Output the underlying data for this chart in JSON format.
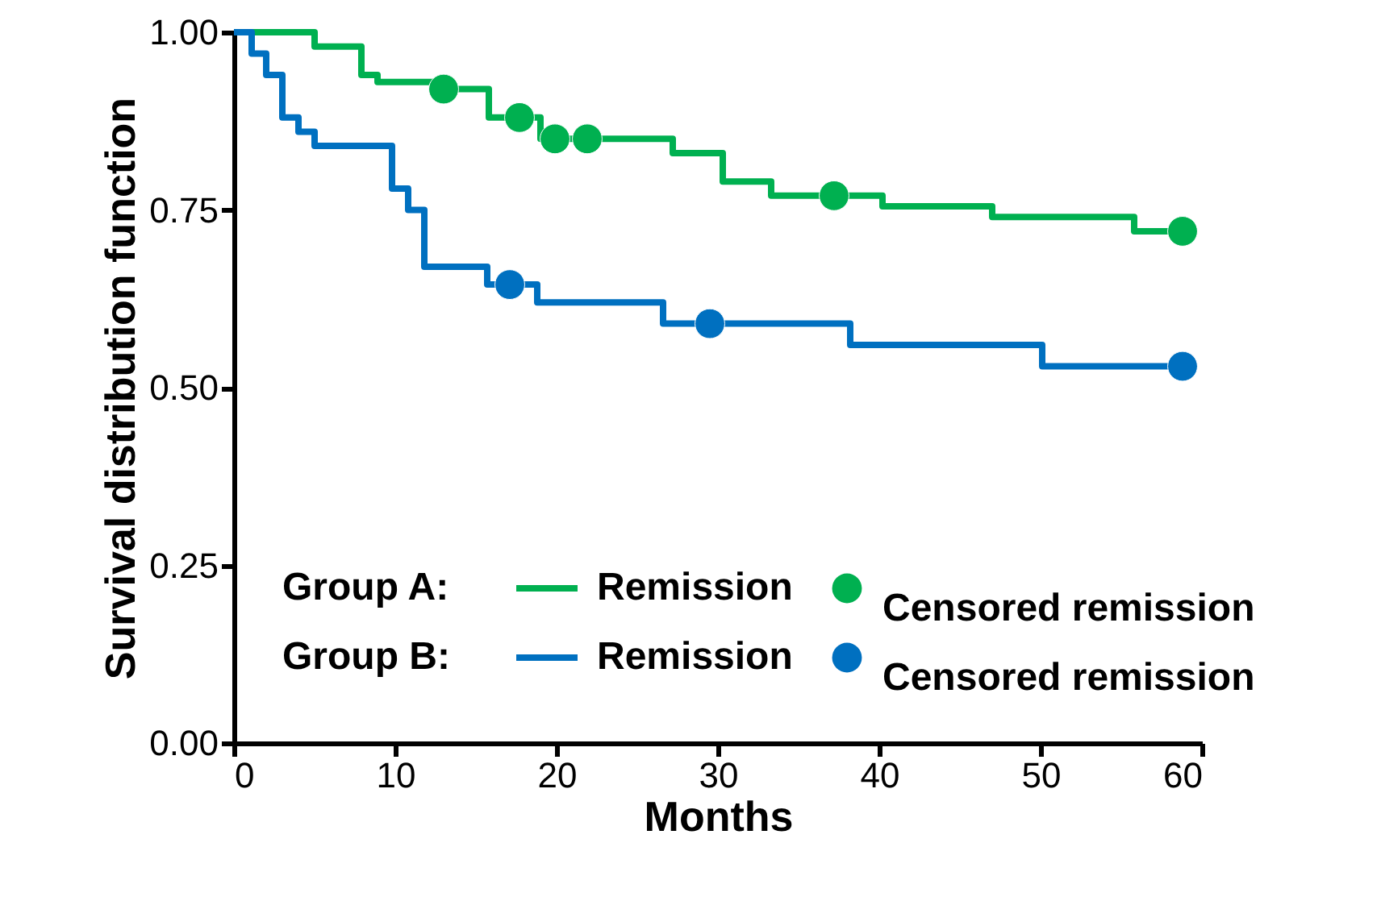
{
  "chart_data": {
    "type": "step",
    "xlabel": "Months",
    "ylabel": "Survival distribution function",
    "xlim": [
      0,
      60
    ],
    "xticks": [
      0,
      10,
      20,
      30,
      40,
      50,
      60
    ],
    "ylim": [
      0,
      1
    ],
    "yticks": [
      {
        "value": 0,
        "label": "0.00"
      },
      {
        "value": 0.25,
        "label": "0.25"
      },
      {
        "value": 0.5,
        "label": "0.50"
      },
      {
        "value": 0.75,
        "label": "0.75"
      },
      {
        "value": 1,
        "label": "1.00"
      }
    ],
    "grid": false,
    "legend": "bottom",
    "annotations": [
      "Group A:",
      "Group B:"
    ],
    "series": [
      {
        "name": "Remission",
        "color": "#00b050",
        "x": [
          0,
          5.0,
          7.9,
          8.9,
          13.0,
          15.8,
          19.0,
          27.2,
          30.3,
          33.3,
          40.2,
          47.0,
          55.8,
          58.8
        ],
        "values": [
          1.0,
          0.98,
          0.94,
          0.93,
          0.92,
          0.88,
          0.85,
          0.83,
          0.79,
          0.77,
          0.755,
          0.74,
          0.72,
          0.72
        ]
      },
      {
        "name": "Censored remission",
        "type": "scatter",
        "marker": "circle",
        "color": "#00b050",
        "x": [
          13.0,
          17.7,
          19.9,
          21.9,
          37.2,
          58.8
        ],
        "values": [
          0.92,
          0.88,
          0.85,
          0.85,
          0.77,
          0.72
        ]
      },
      {
        "name": "Remission",
        "color": "#0070c0",
        "x": [
          0,
          1.1,
          2.0,
          3.0,
          4.0,
          5.0,
          9.8,
          10.8,
          11.8,
          15.7,
          18.8,
          26.6,
          38.2,
          50.1,
          58.8
        ],
        "values": [
          1.0,
          0.97,
          0.94,
          0.88,
          0.86,
          0.84,
          0.78,
          0.75,
          0.67,
          0.645,
          0.62,
          0.59,
          0.56,
          0.53,
          0.53
        ]
      },
      {
        "name": "Censored remission",
        "type": "scatter",
        "marker": "circle",
        "color": "#0070c0",
        "x": [
          17.1,
          29.5,
          58.8
        ],
        "values": [
          0.645,
          0.59,
          0.53
        ]
      }
    ]
  }
}
